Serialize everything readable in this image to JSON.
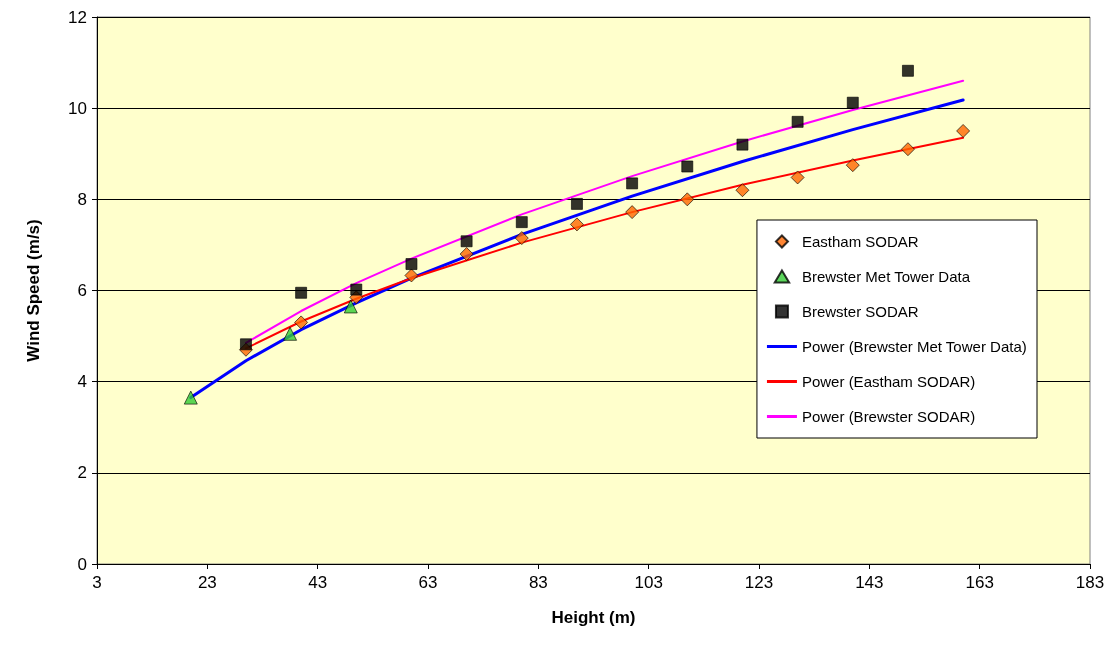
{
  "chart_data": {
    "type": "scatter",
    "xlabel": "Height (m)",
    "ylabel": "Wind Speed (m/s)",
    "xlim": [
      3,
      183
    ],
    "xticks": [
      3,
      23,
      43,
      63,
      83,
      103,
      123,
      143,
      163,
      183
    ],
    "ylim": [
      0,
      12
    ],
    "yticks": [
      0,
      2,
      4,
      6,
      8,
      10,
      12
    ],
    "grid": "y",
    "legend": "right",
    "series": [
      {
        "name": "Eastham SODAR",
        "marker": "diamond",
        "color": "#ff6600",
        "x": [
          30,
          40,
          50,
          60,
          70,
          80,
          90,
          100,
          110,
          120,
          130,
          140,
          150,
          160
        ],
        "values": [
          4.7,
          5.3,
          5.85,
          6.33,
          6.8,
          7.15,
          7.45,
          7.72,
          8.0,
          8.2,
          8.48,
          8.75,
          9.1,
          9.5
        ]
      },
      {
        "name": "Brewster Met Tower Data",
        "marker": "triangle",
        "color": "#33cc33",
        "x": [
          20,
          38,
          49
        ],
        "values": [
          3.65,
          5.05,
          5.65
        ]
      },
      {
        "name": "Brewster SODAR",
        "marker": "square",
        "color": "#000000",
        "x": [
          30,
          40,
          50,
          60,
          70,
          80,
          90,
          100,
          110,
          120,
          130,
          140,
          150
        ],
        "values": [
          4.82,
          5.95,
          6.02,
          6.58,
          7.08,
          7.5,
          7.9,
          8.35,
          8.72,
          9.2,
          9.7,
          10.12,
          10.82
        ]
      },
      {
        "name": "Power (Brewster Met Tower Data)",
        "type": "line",
        "marker": "none",
        "color": "#0000ff",
        "x": [
          20,
          30,
          40,
          50,
          60,
          80,
          100,
          120,
          140,
          160
        ],
        "values": [
          3.65,
          4.46,
          5.14,
          5.73,
          6.27,
          7.23,
          8.07,
          8.83,
          9.53,
          10.18
        ]
      },
      {
        "name": "Power (Eastham SODAR)",
        "type": "line",
        "marker": "none",
        "color": "#ff0000",
        "x": [
          30,
          40,
          50,
          60,
          80,
          100,
          120,
          140,
          160
        ],
        "values": [
          4.73,
          5.32,
          5.82,
          6.27,
          7.05,
          7.72,
          8.32,
          8.85,
          9.35
        ]
      },
      {
        "name": "Power (Brewster SODAR)",
        "type": "line",
        "marker": "none",
        "color": "#ff00ff",
        "x": [
          30,
          40,
          50,
          60,
          80,
          100,
          120,
          140,
          160
        ],
        "values": [
          4.85,
          5.55,
          6.16,
          6.7,
          7.67,
          8.51,
          9.27,
          9.96,
          10.6
        ]
      }
    ]
  }
}
